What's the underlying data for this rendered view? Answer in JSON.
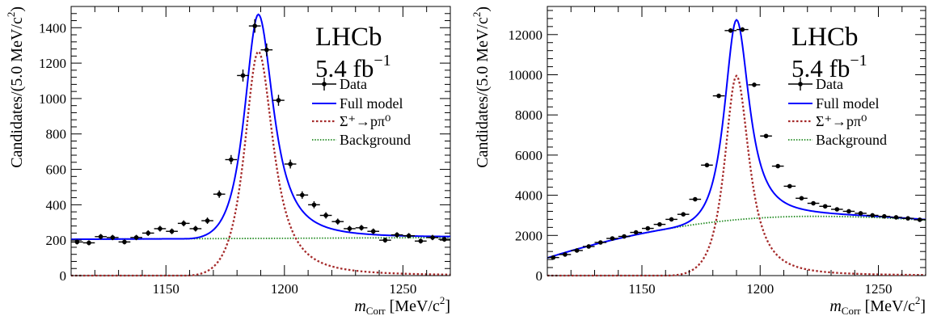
{
  "chart_data": [
    {
      "type": "scatter",
      "experiment": "LHCb",
      "luminosity": "5.4 fb",
      "luminosity_exp": "−1",
      "xlabel": "m",
      "xlabel_sub": "Corr",
      "xlabel_unit": " [MeV/c",
      "xlabel_unit_sup": "2",
      "xlabel_close": "]",
      "ylabel": "Candidates/(5.0 MeV/c",
      "ylabel_sup": "2",
      "ylabel_close": ")",
      "xlim": [
        1110,
        1270
      ],
      "ylim": [
        0,
        1520
      ],
      "xticks": [
        1150,
        1200,
        1250
      ],
      "yticks": [
        0,
        200,
        400,
        600,
        800,
        1000,
        1200,
        1400
      ],
      "grid": false,
      "legend_position": "top-right",
      "legend": [
        "Data",
        "Full model",
        "Σ⁺→pπ⁰",
        "Background"
      ],
      "colors": {
        "data": "#000000",
        "full_model": "#0000ff",
        "signal": "#a52a2a",
        "background": "#228b22"
      },
      "data": {
        "x": [
          1112.5,
          1117.5,
          1122.5,
          1127.5,
          1132.5,
          1137.5,
          1142.5,
          1147.5,
          1152.5,
          1157.5,
          1162.5,
          1167.5,
          1172.5,
          1177.5,
          1182.5,
          1187.5,
          1192.5,
          1197.5,
          1202.5,
          1207.5,
          1212.5,
          1217.5,
          1222.5,
          1227.5,
          1232.5,
          1237.5,
          1242.5,
          1247.5,
          1252.5,
          1257.5,
          1262.5,
          1267.5
        ],
        "y": [
          190,
          185,
          220,
          215,
          190,
          215,
          240,
          265,
          250,
          295,
          265,
          310,
          460,
          655,
          1130,
          1410,
          1275,
          990,
          630,
          455,
          400,
          340,
          305,
          265,
          270,
          250,
          200,
          230,
          225,
          195,
          215,
          205
        ],
        "yerr": [
          14,
          14,
          15,
          15,
          14,
          15,
          16,
          16,
          16,
          17,
          16,
          18,
          21,
          26,
          34,
          38,
          36,
          31,
          25,
          21,
          20,
          18,
          17,
          16,
          16,
          16,
          14,
          15,
          15,
          14,
          15,
          14
        ]
      },
      "model": {
        "background": {
          "start": 205,
          "end": 215
        },
        "signal": {
          "peak": 1265,
          "mean": 1189,
          "gamma": 8.5,
          "power": 1.2,
          "low_cut": 1158
        }
      }
    },
    {
      "type": "scatter",
      "experiment": "LHCb",
      "luminosity": "5.4 fb",
      "luminosity_exp": "−1",
      "xlabel": "m",
      "xlabel_sub": "Corr",
      "xlabel_unit": " [MeV/c",
      "xlabel_unit_sup": "2",
      "xlabel_close": "]",
      "ylabel": "Candidates/(5.0 MeV/c",
      "ylabel_sup": "2",
      "ylabel_close": ")",
      "xlim": [
        1110,
        1270
      ],
      "ylim": [
        0,
        13400
      ],
      "xticks": [
        1150,
        1200,
        1250
      ],
      "yticks": [
        0,
        2000,
        4000,
        6000,
        8000,
        10000,
        12000
      ],
      "grid": false,
      "legend_position": "top-right",
      "legend": [
        "Data",
        "Full model",
        "Σ⁺→pπ⁰",
        "Background"
      ],
      "colors": {
        "data": "#000000",
        "full_model": "#0000ff",
        "signal": "#a52a2a",
        "background": "#228b22"
      },
      "data": {
        "x": [
          1112.5,
          1117.5,
          1122.5,
          1127.5,
          1132.5,
          1137.5,
          1142.5,
          1147.5,
          1152.5,
          1157.5,
          1162.5,
          1167.5,
          1172.5,
          1177.5,
          1182.5,
          1187.5,
          1192.5,
          1197.5,
          1202.5,
          1207.5,
          1212.5,
          1217.5,
          1222.5,
          1227.5,
          1232.5,
          1237.5,
          1242.5,
          1247.5,
          1252.5,
          1257.5,
          1262.5,
          1267.5
        ],
        "y": [
          900,
          1050,
          1250,
          1450,
          1650,
          1850,
          1950,
          2150,
          2350,
          2550,
          2800,
          3050,
          3800,
          5500,
          8950,
          12200,
          12250,
          9500,
          6950,
          5450,
          4450,
          3850,
          3600,
          3450,
          3300,
          3200,
          3100,
          3000,
          2950,
          2900,
          2850,
          2780
        ],
        "yerr": [
          30,
          32,
          35,
          38,
          41,
          43,
          44,
          46,
          48,
          50,
          53,
          55,
          62,
          74,
          95,
          110,
          111,
          97,
          83,
          74,
          67,
          62,
          60,
          59,
          57,
          57,
          56,
          55,
          54,
          54,
          53,
          53
        ]
      },
      "model": {
        "background": {
          "start": 880,
          "peak": 2950,
          "peak_x": 1222,
          "end": 2760
        },
        "signal": {
          "peak": 9950,
          "mean": 1190,
          "gamma": 7.2,
          "power": 1.2,
          "low_cut": 1160
        }
      }
    }
  ]
}
